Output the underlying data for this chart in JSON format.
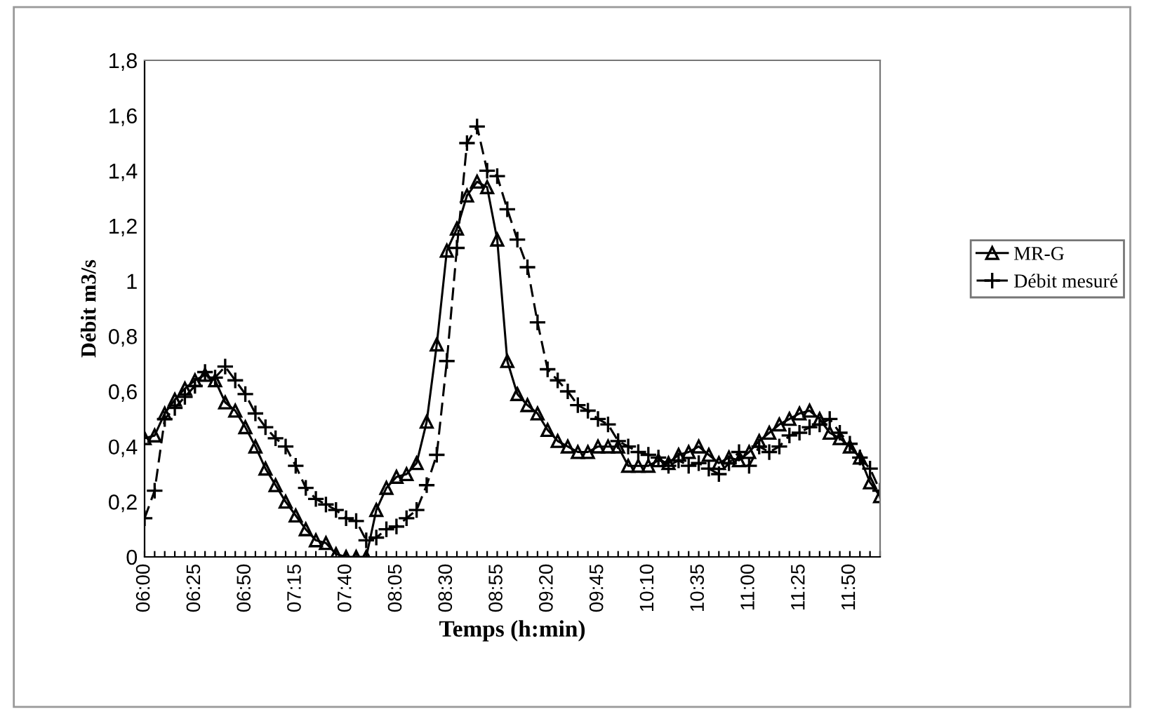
{
  "chart_data": {
    "type": "line",
    "xlabel": "Temps (h:min)",
    "ylabel": "Débit m3/s",
    "categories": [
      "06:00",
      null,
      null,
      null,
      null,
      "06:25",
      null,
      null,
      null,
      null,
      "06:50",
      null,
      null,
      null,
      null,
      "07:15",
      null,
      null,
      null,
      null,
      "07:40",
      null,
      null,
      null,
      null,
      "08:05",
      null,
      null,
      null,
      null,
      "08:30",
      null,
      null,
      null,
      null,
      "08:55",
      null,
      null,
      null,
      null,
      "09:20",
      null,
      null,
      null,
      null,
      "09:45",
      null,
      null,
      null,
      null,
      "10:10",
      null,
      null,
      null,
      null,
      "10:35",
      null,
      null,
      null,
      null,
      "11:00",
      null,
      null,
      null,
      null,
      "11:25",
      null,
      null,
      null,
      null,
      "11:50",
      null,
      null,
      null
    ],
    "series": [
      {
        "name": "MR-G",
        "color": "#000000",
        "marker": "triangle",
        "line_style": "solid",
        "values": [
          0.43,
          0.44,
          0.52,
          0.57,
          0.61,
          0.64,
          0.66,
          0.64,
          0.56,
          0.53,
          0.47,
          0.4,
          0.32,
          0.26,
          0.2,
          0.15,
          0.1,
          0.06,
          0.05,
          0.01,
          0.0,
          0.0,
          0.0,
          0.17,
          0.25,
          0.29,
          0.3,
          0.34,
          0.49,
          0.77,
          1.11,
          1.19,
          1.31,
          1.36,
          1.34,
          1.15,
          0.71,
          0.59,
          0.55,
          0.52,
          0.46,
          0.42,
          0.4,
          0.38,
          0.38,
          0.4,
          0.4,
          0.4,
          0.33,
          0.33,
          0.33,
          0.35,
          0.34,
          0.37,
          0.38,
          0.4,
          0.37,
          0.34,
          0.36,
          0.35,
          0.38,
          0.42,
          0.45,
          0.48,
          0.5,
          0.52,
          0.53,
          0.5,
          0.45,
          0.43,
          0.4,
          0.36,
          0.27,
          0.22
        ]
      },
      {
        "name": "Débit mesuré",
        "color": "#000000",
        "marker": "cross",
        "line_style": "dashed",
        "values": [
          0.14,
          0.24,
          0.5,
          0.54,
          0.58,
          0.62,
          0.67,
          0.65,
          0.69,
          0.64,
          0.59,
          0.52,
          0.47,
          0.43,
          0.4,
          0.33,
          0.25,
          0.21,
          0.19,
          0.17,
          0.14,
          0.13,
          0.06,
          0.07,
          0.1,
          0.11,
          0.14,
          0.17,
          0.26,
          0.37,
          0.71,
          1.12,
          1.5,
          1.56,
          1.4,
          1.38,
          1.26,
          1.15,
          1.05,
          0.85,
          0.68,
          0.64,
          0.6,
          0.55,
          0.53,
          0.5,
          0.48,
          0.42,
          0.4,
          0.38,
          0.37,
          0.36,
          0.33,
          0.35,
          0.33,
          0.34,
          0.32,
          0.3,
          0.34,
          0.38,
          0.33,
          0.4,
          0.38,
          0.4,
          0.44,
          0.45,
          0.47,
          0.48,
          0.5,
          0.45,
          0.41,
          0.36,
          0.32,
          0.24
        ]
      }
    ],
    "ylim": [
      0,
      1.8
    ],
    "yticks": [
      0,
      {
        "value": 0.2,
        "label": "0,2"
      },
      {
        "value": 0.4,
        "label": "0,4"
      },
      {
        "value": 0.6,
        "label": "0,6"
      },
      {
        "value": 0.8,
        "label": "0,8"
      },
      1,
      {
        "value": 1.2,
        "label": "1,2"
      },
      {
        "value": 1.4,
        "label": "1,4"
      },
      {
        "value": 1.6,
        "label": "1,6"
      },
      {
        "value": 1.8,
        "label": "1,8"
      }
    ],
    "grid": false,
    "legend": "right"
  }
}
